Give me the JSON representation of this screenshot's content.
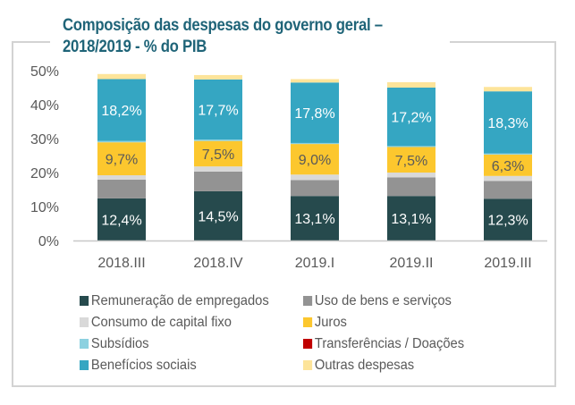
{
  "chart_data": {
    "type": "bar",
    "stacked": true,
    "title": "Composição das despesas do governo geral – 2018/2019 - % do PIB",
    "title_lines": [
      "Composição das despesas do governo geral –",
      "2018/2019 - % do PIB"
    ],
    "xlabel": "",
    "ylabel": "",
    "ylim": [
      0,
      50
    ],
    "yticks": [
      0,
      10,
      20,
      30,
      40,
      50
    ],
    "ytick_labels": [
      "0%",
      "10%",
      "20%",
      "30%",
      "40%",
      "50%"
    ],
    "grid": false,
    "legend_position": "bottom",
    "categories": [
      "2018.III",
      "2018.IV",
      "2019.I",
      "2019.II",
      "2019.III"
    ],
    "series": [
      {
        "name": "Remuneração de empregados",
        "color": "#264a4d",
        "values": [
          12.4,
          14.5,
          13.1,
          13.1,
          12.3
        ],
        "labels": [
          "12,4%",
          "14,5%",
          "13,1%",
          "13,1%",
          "12,3%"
        ],
        "label_color": "#ffffff"
      },
      {
        "name": "Uso de bens e serviços",
        "color": "#939393",
        "values": [
          5.5,
          5.8,
          4.7,
          5.5,
          5.2
        ]
      },
      {
        "name": "Consumo de capital fixo",
        "color": "#d9d9d9",
        "values": [
          1.3,
          1.5,
          1.6,
          1.4,
          1.5
        ]
      },
      {
        "name": "Juros",
        "color": "#fcc72e",
        "values": [
          9.7,
          7.5,
          9.0,
          7.5,
          6.3
        ],
        "labels": [
          "9,7%",
          "7,5%",
          "9,0%",
          "7,5%",
          "6,3%"
        ],
        "label_color": "#595959"
      },
      {
        "name": "Subsídios",
        "color": "#8cd1e0",
        "values": [
          0.4,
          0.4,
          0.3,
          0.3,
          0.3
        ]
      },
      {
        "name": "Transferências / Doações",
        "color": "#c00000",
        "values": [
          0,
          0,
          0,
          0,
          0
        ]
      },
      {
        "name": "Benefícios sociais",
        "color": "#35a6c2",
        "values": [
          18.2,
          17.7,
          17.8,
          17.2,
          18.3
        ],
        "labels": [
          "18,2%",
          "17,7%",
          "17,8%",
          "17,2%",
          "18,3%"
        ],
        "label_color": "#ffffff"
      },
      {
        "name": "Outras despesas",
        "color": "#fde49a",
        "values": [
          1.5,
          1.3,
          1.0,
          1.6,
          1.3
        ]
      }
    ],
    "legend_order": [
      0,
      1,
      2,
      3,
      4,
      5,
      6,
      7
    ]
  }
}
